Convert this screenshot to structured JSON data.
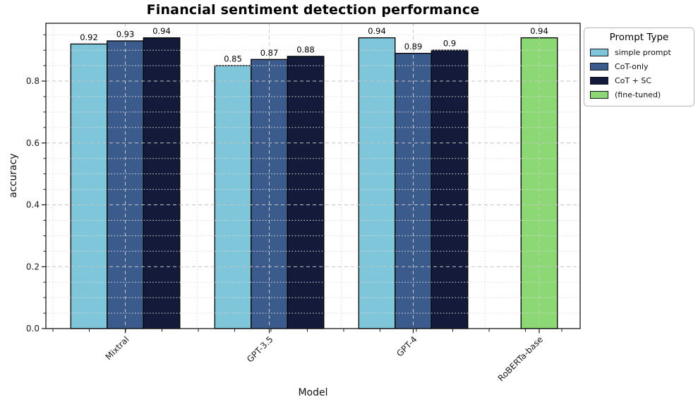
{
  "title": "Financial sentiment detection performance",
  "chart_data": {
    "type": "bar",
    "title": "Financial sentiment detection performance",
    "xlabel": "Model",
    "ylabel": "accuracy",
    "categories": [
      "Mixtral",
      "GPT-3.5",
      "GPT-4",
      "RoBERTa-base"
    ],
    "series": [
      {
        "name": "simple prompt",
        "color": "#7fc6da",
        "values": [
          0.92,
          0.85,
          0.94,
          null
        ]
      },
      {
        "name": "CoT-only",
        "color": "#3b5b8d",
        "values": [
          0.93,
          0.87,
          0.89,
          null
        ]
      },
      {
        "name": "CoT + SC",
        "color": "#131a3a",
        "values": [
          0.94,
          0.88,
          0.9,
          null
        ]
      },
      {
        "name": "(fine-tuned)",
        "color": "#8bd874",
        "values": [
          null,
          null,
          null,
          0.94
        ]
      }
    ],
    "bar_value_labels": [
      [
        "0.92",
        "0.93",
        "0.94"
      ],
      [
        "0.85",
        "0.87",
        "0.88"
      ],
      [
        "0.94",
        "0.89",
        "0.9"
      ],
      [
        "0.94"
      ]
    ],
    "ylim": [
      0,
      0.987
    ],
    "yticks": [
      "0.0",
      "0.2",
      "0.4",
      "0.6",
      "0.8"
    ],
    "ytick_values": [
      0,
      0.2,
      0.4,
      0.6,
      0.8
    ],
    "grid": {
      "major": "dashed",
      "minor": "dotted",
      "minor_step": 0.05
    },
    "legend_title": "Prompt Type",
    "legend_position": "upper-right-outside"
  }
}
